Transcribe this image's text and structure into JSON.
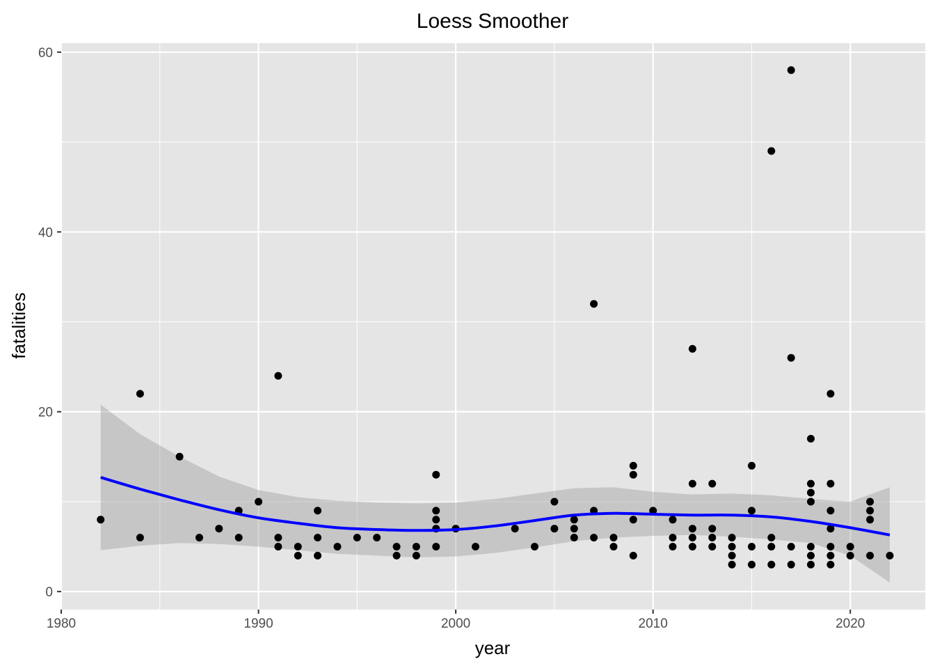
{
  "chart_data": {
    "type": "scatter",
    "title": "Loess Smoother",
    "xlabel": "year",
    "ylabel": "fatalities",
    "xlim": [
      1980,
      2023.8
    ],
    "ylim": [
      -2,
      61
    ],
    "x_ticks": [
      1980,
      1990,
      2000,
      2010,
      2020
    ],
    "y_ticks": [
      0,
      20,
      40,
      60
    ],
    "grid": true,
    "legend": "none",
    "colors": {
      "panel": "#e5e5e5",
      "grid": "#ffffff",
      "points": "#000000",
      "smooth_line": "#0000ff",
      "ribbon": "#999999"
    },
    "points": [
      [
        1982,
        8
      ],
      [
        1984,
        22
      ],
      [
        1984,
        6
      ],
      [
        1986,
        15
      ],
      [
        1987,
        6
      ],
      [
        1988,
        7
      ],
      [
        1989,
        9
      ],
      [
        1989,
        6
      ],
      [
        1990,
        10
      ],
      [
        1991,
        24
      ],
      [
        1991,
        6
      ],
      [
        1991,
        5
      ],
      [
        1992,
        5
      ],
      [
        1992,
        4
      ],
      [
        1993,
        9
      ],
      [
        1993,
        6
      ],
      [
        1993,
        4
      ],
      [
        1994,
        5
      ],
      [
        1995,
        6
      ],
      [
        1996,
        6
      ],
      [
        1997,
        5
      ],
      [
        1997,
        4
      ],
      [
        1998,
        5
      ],
      [
        1998,
        4
      ],
      [
        1999,
        13
      ],
      [
        1999,
        9
      ],
      [
        1999,
        8
      ],
      [
        1999,
        7
      ],
      [
        1999,
        5
      ],
      [
        2000,
        7
      ],
      [
        2001,
        5
      ],
      [
        2003,
        7
      ],
      [
        2004,
        5
      ],
      [
        2005,
        10
      ],
      [
        2005,
        7
      ],
      [
        2006,
        8
      ],
      [
        2006,
        7
      ],
      [
        2006,
        6
      ],
      [
        2007,
        32
      ],
      [
        2007,
        9
      ],
      [
        2007,
        6
      ],
      [
        2008,
        6
      ],
      [
        2008,
        5
      ],
      [
        2009,
        14
      ],
      [
        2009,
        13
      ],
      [
        2009,
        8
      ],
      [
        2009,
        4
      ],
      [
        2010,
        9
      ],
      [
        2011,
        8
      ],
      [
        2011,
        6
      ],
      [
        2011,
        5
      ],
      [
        2012,
        27
      ],
      [
        2012,
        12
      ],
      [
        2012,
        7
      ],
      [
        2012,
        6
      ],
      [
        2012,
        5
      ],
      [
        2013,
        12
      ],
      [
        2013,
        7
      ],
      [
        2013,
        6
      ],
      [
        2013,
        5
      ],
      [
        2014,
        6
      ],
      [
        2014,
        5
      ],
      [
        2014,
        4
      ],
      [
        2014,
        3
      ],
      [
        2015,
        14
      ],
      [
        2015,
        9
      ],
      [
        2015,
        5
      ],
      [
        2015,
        3
      ],
      [
        2016,
        49
      ],
      [
        2016,
        6
      ],
      [
        2016,
        5
      ],
      [
        2016,
        3
      ],
      [
        2017,
        58
      ],
      [
        2017,
        26
      ],
      [
        2017,
        5
      ],
      [
        2017,
        3
      ],
      [
        2018,
        17
      ],
      [
        2018,
        12
      ],
      [
        2018,
        11
      ],
      [
        2018,
        10
      ],
      [
        2018,
        5
      ],
      [
        2018,
        4
      ],
      [
        2018,
        3
      ],
      [
        2019,
        22
      ],
      [
        2019,
        12
      ],
      [
        2019,
        9
      ],
      [
        2019,
        7
      ],
      [
        2019,
        5
      ],
      [
        2019,
        4
      ],
      [
        2019,
        3
      ],
      [
        2020,
        5
      ],
      [
        2020,
        4
      ],
      [
        2021,
        10
      ],
      [
        2021,
        9
      ],
      [
        2021,
        8
      ],
      [
        2021,
        4
      ],
      [
        2022,
        4
      ]
    ],
    "smooth": {
      "x": [
        1982,
        1984,
        1986,
        1988,
        1990,
        1992,
        1994,
        1996,
        1998,
        2000,
        2002,
        2004,
        2006,
        2008,
        2010,
        2012,
        2014,
        2016,
        2018,
        2020,
        2022
      ],
      "y": [
        12.7,
        11.4,
        10.2,
        9.1,
        8.2,
        7.6,
        7.1,
        6.9,
        6.8,
        6.9,
        7.3,
        7.9,
        8.5,
        8.7,
        8.6,
        8.5,
        8.5,
        8.3,
        7.8,
        7.1,
        6.3
      ],
      "lower": [
        4.6,
        5.1,
        5.4,
        5.3,
        5.0,
        4.6,
        4.2,
        4.0,
        3.8,
        3.9,
        4.3,
        4.9,
        5.6,
        6.0,
        6.2,
        6.3,
        6.1,
        5.8,
        5.4,
        4.0,
        1.0
      ],
      "upper": [
        20.8,
        17.5,
        15.0,
        12.8,
        11.3,
        10.5,
        10.1,
        9.9,
        9.8,
        9.9,
        10.3,
        10.9,
        11.5,
        11.6,
        11.1,
        10.8,
        10.9,
        10.7,
        10.3,
        10.0,
        11.6
      ]
    }
  }
}
